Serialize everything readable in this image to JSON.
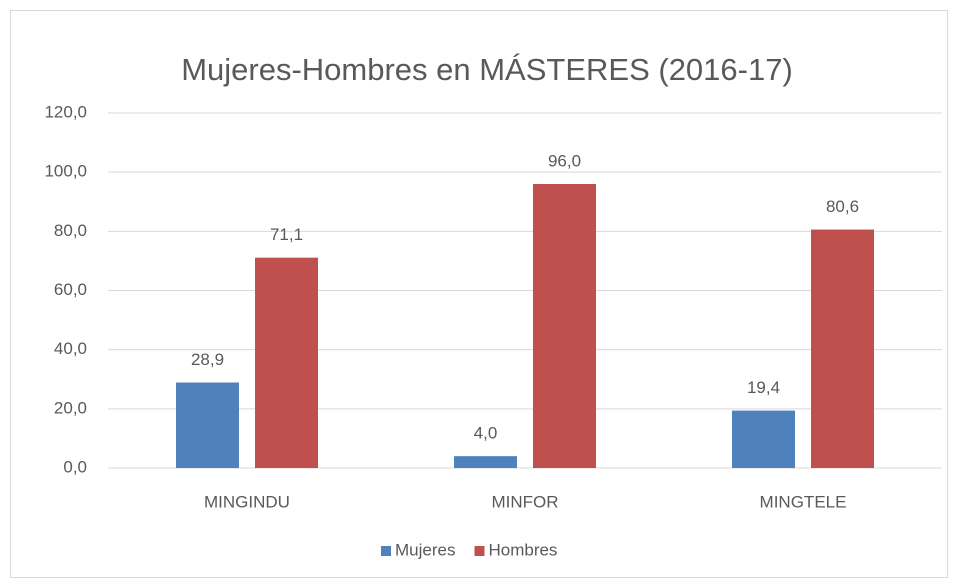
{
  "chart_data": {
    "type": "bar",
    "title": "Mujeres-Hombres en MÁSTERES (2016-17)",
    "categories": [
      "MINGINDU",
      "MINFOR",
      "MINGTELE"
    ],
    "series": [
      {
        "name": "Mujeres",
        "color": "#4f81bd",
        "values": [
          28.9,
          4.0,
          19.4
        ],
        "value_labels": [
          "28,9",
          "4,0",
          "19,4"
        ]
      },
      {
        "name": "Hombres",
        "color": "#c0504d",
        "values": [
          71.1,
          96.0,
          80.6
        ],
        "value_labels": [
          "71,1",
          "96,0",
          "80,6"
        ]
      }
    ],
    "ylim": [
      0,
      120
    ],
    "yticks": [
      {
        "value": 0,
        "label": "0,0"
      },
      {
        "value": 20,
        "label": "20,0"
      },
      {
        "value": 40,
        "label": "40,0"
      },
      {
        "value": 60,
        "label": "60,0"
      },
      {
        "value": 80,
        "label": "80,0"
      },
      {
        "value": 100,
        "label": "100,0"
      },
      {
        "value": 120,
        "label": "120,0"
      }
    ],
    "grid": true,
    "legend": "bottom"
  }
}
